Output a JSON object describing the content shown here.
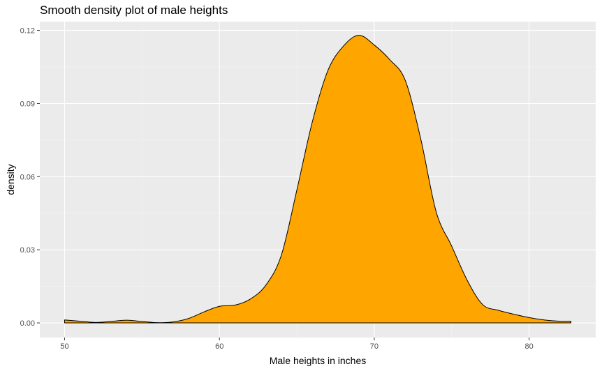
{
  "chart_data": {
    "type": "area",
    "title": "Smooth density plot of male heights",
    "xlabel": "Male heights in inches",
    "ylabel": "density",
    "xlim": [
      48.4,
      84.3
    ],
    "ylim": [
      -0.006,
      0.1236
    ],
    "x_ticks": [
      50,
      60,
      70,
      80
    ],
    "x_tick_labels": [
      "50",
      "60",
      "70",
      "80"
    ],
    "y_ticks": [
      0.0,
      0.03,
      0.06,
      0.09,
      0.12
    ],
    "y_tick_labels": [
      "0.00",
      "0.03",
      "0.06",
      "0.09",
      "0.12"
    ],
    "grid": true,
    "fill_color": "#FFA500",
    "line_color": "#000000",
    "panel_background": "#EBEBEB",
    "series": [
      {
        "x": [
          50.0,
          51.0,
          52.0,
          53.0,
          54.0,
          55.0,
          56.0,
          57.0,
          58.0,
          59.0,
          60.0,
          61.0,
          62.0,
          63.0,
          64.0,
          65.0,
          66.0,
          67.0,
          68.0,
          69.0,
          70.0,
          71.0,
          72.0,
          73.0,
          74.0,
          75.0,
          76.0,
          77.0,
          78.0,
          79.0,
          80.0,
          81.0,
          82.0,
          82.7
        ],
        "y": [
          0.0012,
          0.0007,
          0.0002,
          0.0006,
          0.0011,
          0.0006,
          0.0001,
          0.0004,
          0.0018,
          0.0045,
          0.0068,
          0.0073,
          0.0098,
          0.0155,
          0.0278,
          0.0545,
          0.0825,
          0.1035,
          0.1135,
          0.118,
          0.114,
          0.108,
          0.0995,
          0.0755,
          0.0455,
          0.0315,
          0.0175,
          0.0075,
          0.0052,
          0.0036,
          0.0022,
          0.0012,
          0.0007,
          0.0007
        ]
      }
    ]
  }
}
